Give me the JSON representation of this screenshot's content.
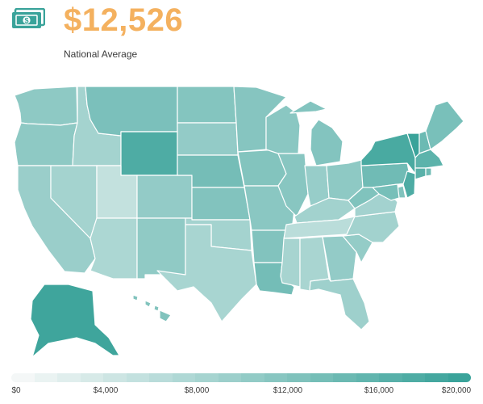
{
  "header": {
    "value": "$12,526",
    "caption": "National Average",
    "icon": "money-icon"
  },
  "colors": {
    "accent": "#f4b15f",
    "icon": "#3aa39a",
    "scale_low": "#f4f7f7",
    "scale_high": "#3aa39a",
    "border": "#ffffff"
  },
  "legend": {
    "ticks": [
      "$0",
      "$4,000",
      "$8,000",
      "$12,000",
      "$16,000",
      "$20,000"
    ],
    "min": 0,
    "max": 20000
  },
  "map_data": {
    "WA": 11000,
    "OR": 11000,
    "CA": 9700,
    "ID": 8600,
    "NV": 8600,
    "MT": 13000,
    "WY": 17800,
    "UT": 5300,
    "AZ": 7700,
    "CO": 10400,
    "NM": 10800,
    "ND": 12000,
    "SD": 10400,
    "NE": 13700,
    "KS": 12300,
    "OK": 8600,
    "TX": 8200,
    "MN": 11800,
    "IA": 12200,
    "MO": 11400,
    "AR": 12300,
    "LA": 13800,
    "WI": 11400,
    "IL": 11600,
    "MI": 12100,
    "IN": 10000,
    "OH": 11000,
    "KY": 8800,
    "TN": 6200,
    "MS": 8300,
    "AL": 8100,
    "GA": 10400,
    "FL": 9300,
    "SC": 10300,
    "NC": 8800,
    "VA": 8700,
    "WV": 12500,
    "PA": 14200,
    "NY": 18400,
    "VT": 20000,
    "NH": 14600,
    "ME": 13200,
    "MA": 16300,
    "CT": 16700,
    "RI": 14400,
    "NJ": 17800,
    "DE": 12500,
    "MD": 13400,
    "AK": 19500,
    "HI": 12400
  }
}
